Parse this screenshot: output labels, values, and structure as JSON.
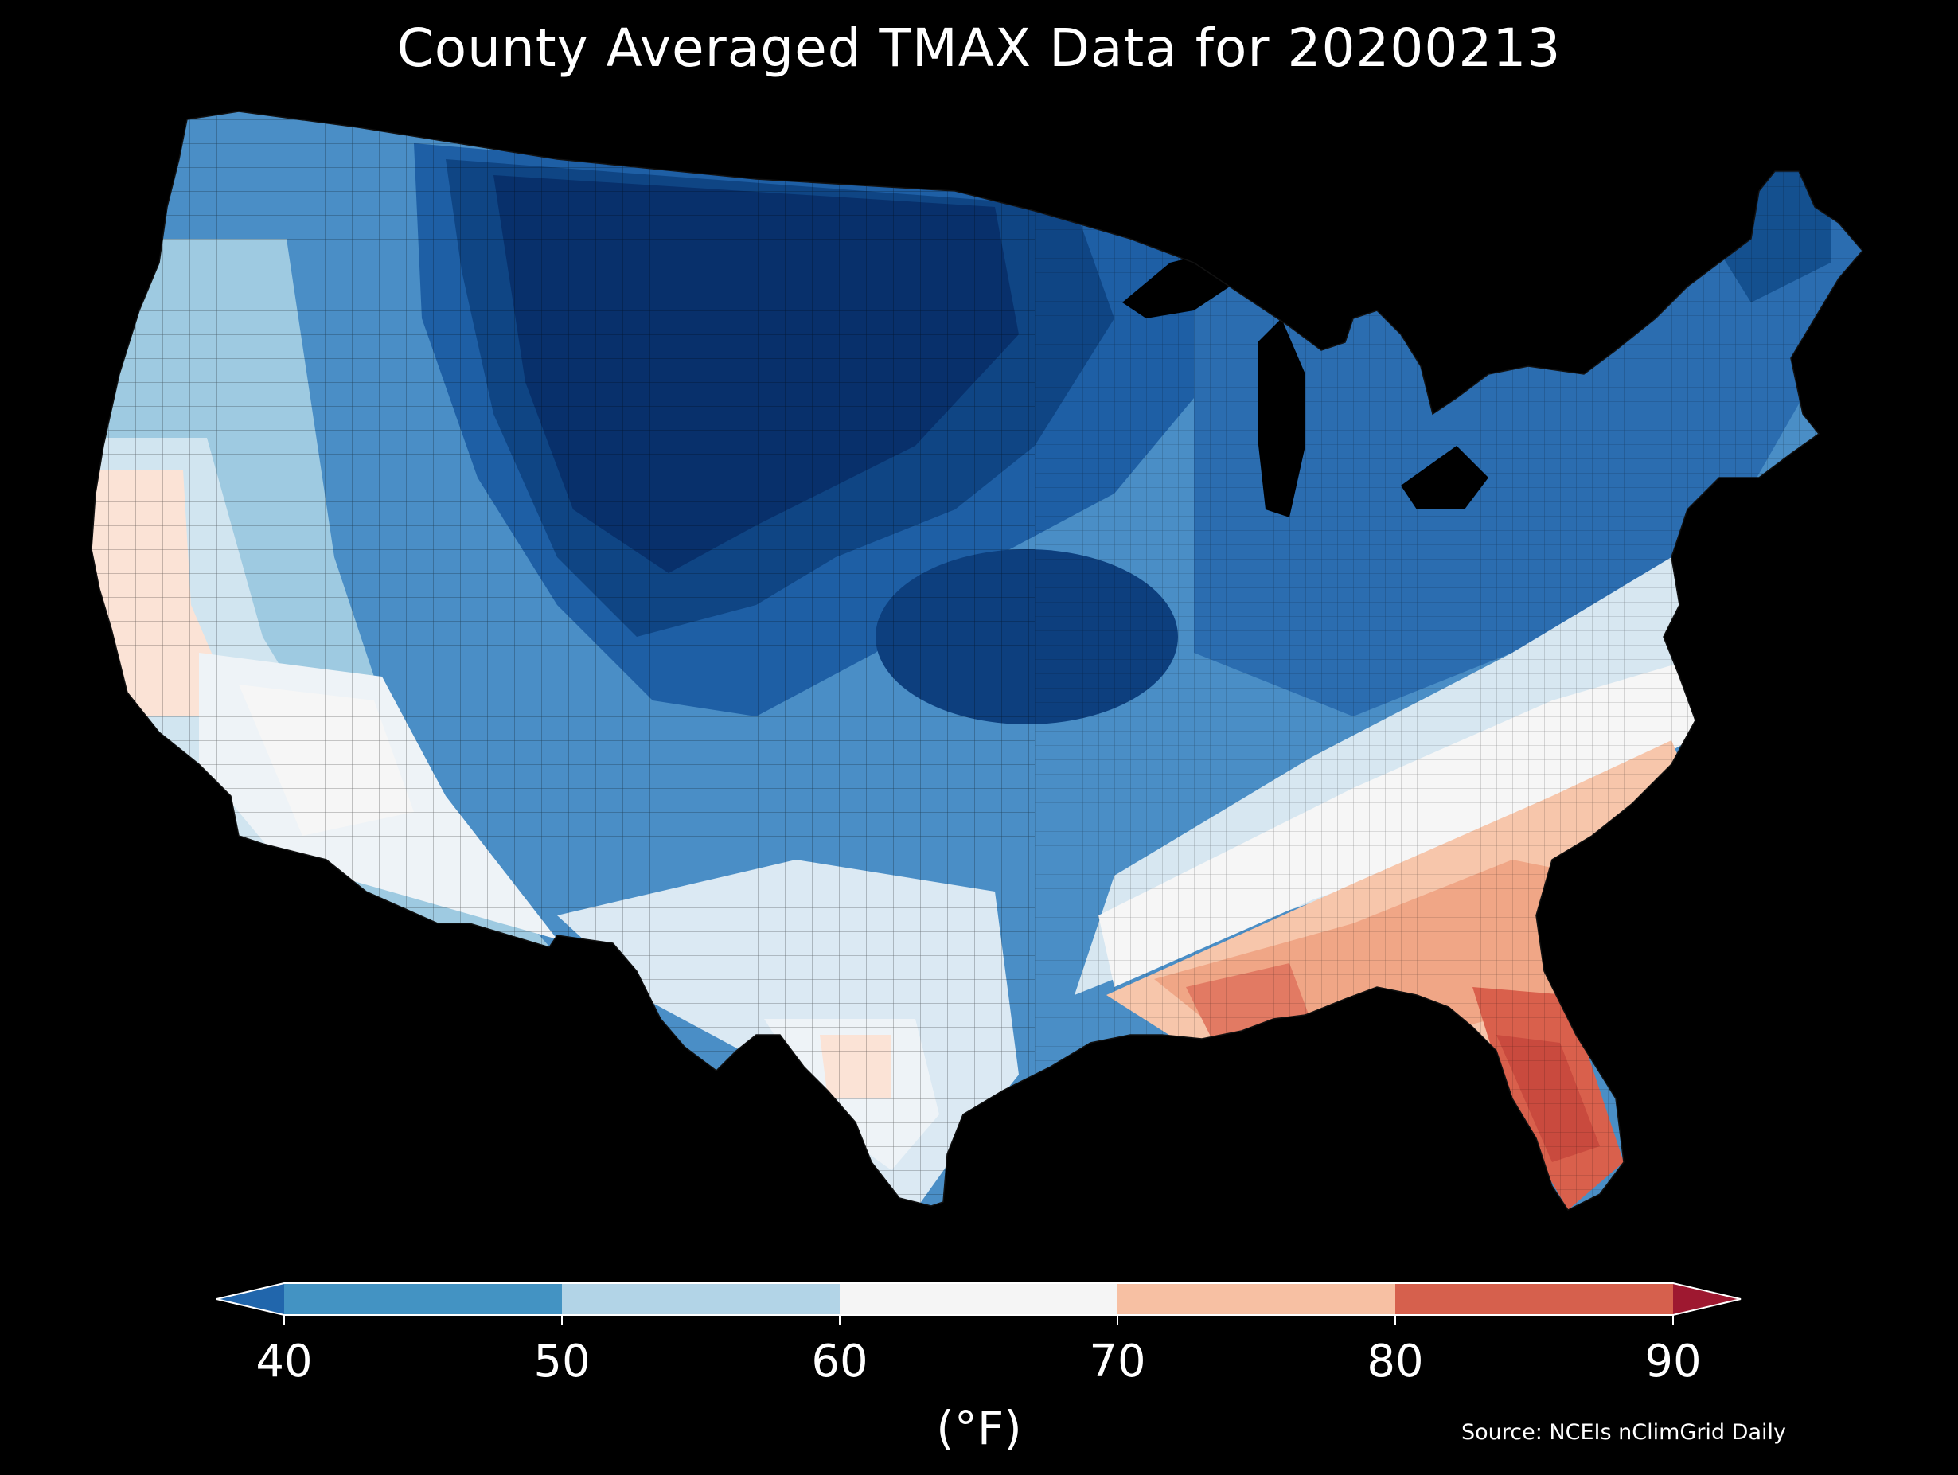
{
  "title": "County Averaged TMAX Data for 20200213",
  "colorbar": {
    "unit_label": "(°F)",
    "ticks": [
      "40",
      "50",
      "60",
      "70",
      "80",
      "90"
    ],
    "bins": [
      {
        "from": null,
        "to": 40,
        "color": "#2166ac"
      },
      {
        "from": 40,
        "to": 50,
        "color": "#4393c3"
      },
      {
        "from": 50,
        "to": 60,
        "color": "#b2d4e7"
      },
      {
        "from": 60,
        "to": 70,
        "color": "#f5f5f5"
      },
      {
        "from": 70,
        "to": 80,
        "color": "#f7c0a3"
      },
      {
        "from": 80,
        "to": 90,
        "color": "#d6604d"
      },
      {
        "from": 90,
        "to": null,
        "color": "#b2182b"
      }
    ],
    "extend": "both"
  },
  "map": {
    "region": "Contiguous United States",
    "unit": "county",
    "variable": "TMAX",
    "colors": {
      "coldest": "#08306b",
      "very_cold": "#0d3f7e",
      "cold": "#2166ac",
      "cool": "#4393c3",
      "mild": "#9ecae1",
      "neutral": "#f5f5f5",
      "warm": "#f4a582",
      "hot": "#d6604d",
      "background": "#000000"
    }
  },
  "source": "Source: NCEIs nClimGrid Daily"
}
